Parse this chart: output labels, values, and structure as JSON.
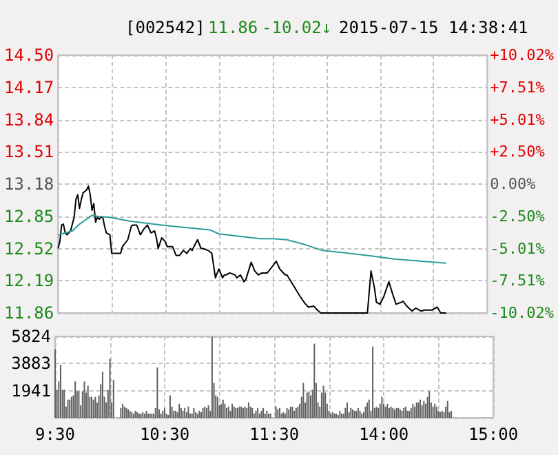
{
  "chart_data": [
    {
      "type": "line",
      "title": "[002542]",
      "annotations": [
        "11.86",
        "-10.02↓",
        "2015-07-15 14:38:41"
      ],
      "categories": [
        null,
        null,
        null,
        null,
        null,
        null,
        null,
        null,
        null,
        null,
        null,
        null,
        null,
        null,
        null,
        null,
        null,
        null,
        null,
        null,
        null,
        null,
        null,
        null,
        null,
        null,
        null,
        null,
        null,
        null,
        null,
        null,
        null,
        null,
        null,
        null,
        null,
        null,
        null,
        null,
        null,
        null,
        null,
        null,
        null,
        null,
        null,
        null,
        null,
        null,
        null,
        null,
        null,
        null,
        null,
        null,
        null,
        null,
        null,
        null,
        null,
        null,
        null,
        null,
        null,
        null,
        null,
        null,
        null,
        null,
        null,
        null,
        null,
        null,
        null,
        null,
        null,
        null,
        null,
        null,
        null,
        null,
        null,
        null,
        null,
        null,
        null,
        null,
        null,
        null,
        null,
        null,
        null,
        null,
        null,
        null,
        null,
        null,
        null,
        null,
        null,
        null,
        null,
        null,
        null,
        null,
        null,
        null,
        null,
        null,
        null,
        null,
        null,
        null,
        null,
        null,
        null,
        null,
        null,
        null,
        null,
        null,
        null,
        null,
        null,
        null,
        null,
        null,
        null,
        null,
        null,
        null,
        null,
        null,
        null,
        null,
        null,
        null,
        null,
        null,
        null,
        null,
        null,
        null,
        null,
        null,
        null,
        null,
        null,
        null,
        null,
        null,
        null,
        null,
        null,
        null,
        null,
        null,
        null,
        null,
        null,
        null,
        null,
        null,
        null,
        null,
        null,
        null,
        null,
        null,
        null,
        null,
        null,
        null,
        null,
        null,
        null,
        null,
        null,
        null,
        null,
        null,
        null,
        null,
        null,
        null,
        null,
        null,
        null,
        null,
        null,
        null,
        null,
        null,
        null,
        null,
        null,
        null,
        null,
        null,
        null,
        null,
        null,
        null,
        null,
        null,
        null,
        null,
        null,
        null,
        null,
        null,
        null,
        null,
        null,
        null,
        null,
        null,
        null,
        null,
        null,
        null,
        null,
        null,
        null,
        null,
        null,
        null,
        null,
        null,
        null,
        null,
        null,
        null,
        null,
        null,
        null,
        null,
        null,
        null,
        null
      ],
      "ylim": [
        11.86,
        14.5
      ],
      "yticks": [
        11.86,
        12.19,
        12.52,
        12.85,
        13.18,
        13.51,
        13.84,
        14.17,
        {
          "value": 14.5,
          "label": "14.50"
        }
      ],
      "y2lim": [
        -10.02,
        10.02
      ],
      "y2ticks": [
        {
          "value": -10.02,
          "label": "-10.02%"
        },
        {
          "value": -7.51,
          "label": "-7.51%"
        },
        {
          "value": -5.01,
          "label": "-5.01%"
        },
        {
          "value": -2.5,
          "label": "-2.50%"
        },
        {
          "value": 0,
          "label": "0.00%"
        },
        {
          "value": 2.5,
          "label": "+2.50%"
        },
        {
          "value": 5.01,
          "label": "+5.01%"
        },
        {
          "value": 7.51,
          "label": "+7.51%"
        },
        {
          "value": 10.02,
          "label": "+10.02%"
        }
      ],
      "grid": true,
      "series": [
        {
          "color": "#000000",
          "values": [
            12.52,
            12.59,
            12.76,
            12.77,
            12.68,
            12.66,
            12.68,
            12.7,
            null,
            12.84,
            13.02,
            13.07,
            12.93,
            13.02,
            13.09,
            null,
            13.12,
            13.16,
            13.07,
            12.91,
            12.98,
            12.79,
            12.84,
            12.82,
            12.84,
            12.84,
            12.75,
            12.68,
            null,
            12.66,
            12.47,
            null,
            12.47,
            null,
            null,
            12.47,
            12.54,
            null,
            null,
            12.61,
            null,
            12.75,
            12.76,
            null,
            12.76,
            null,
            12.66,
            null,
            12.72,
            null,
            12.76,
            null,
            12.68,
            null,
            12.7,
            12.63,
            12.52,
            null,
            12.63,
            null,
            12.59,
            12.54,
            null,
            null,
            12.54,
            null,
            12.45,
            null,
            12.45,
            null,
            12.5,
            null,
            12.47,
            null,
            12.52,
            12.5,
            12.54,
            null,
            12.61,
            null,
            12.52,
            12.52,
            null,
            null,
            12.5,
            null,
            12.47,
            null,
            12.22,
            12.27,
            12.31,
            null,
            12.22,
            12.25,
            12.25,
            null,
            12.27,
            null,
            null,
            12.25,
            12.22,
            null,
            12.25,
            null,
            12.18,
            12.2,
            null,
            null,
            12.38,
            null,
            12.29,
            null,
            12.25,
            null,
            12.27,
            null,
            null,
            12.27,
            null,
            null,
            12.34,
            null,
            12.39,
            null,
            12.31,
            null,
            null,
            12.25,
            12.25,
            null,
            null,
            null,
            12.13,
            null,
            null,
            12.04,
            null,
            null,
            11.96,
            null,
            11.92,
            null,
            null,
            11.93,
            null,
            11.89,
            null,
            11.86,
            null,
            null,
            null,
            null,
            null,
            null,
            null,
            null,
            null,
            null,
            null,
            null,
            null,
            null,
            null,
            null,
            null,
            null,
            null,
            null,
            null,
            null,
            null,
            null,
            null,
            11.86,
            null,
            12.29,
            null,
            12.11,
            11.97,
            null,
            11.95,
            null,
            12.02,
            null,
            null,
            12.18,
            null,
            12.06,
            null,
            11.95,
            null,
            null,
            11.97,
            11.98,
            null,
            11.93,
            null,
            null,
            11.88,
            null,
            11.91,
            null,
            null,
            11.88,
            null,
            11.89,
            null,
            null,
            null,
            11.89,
            null,
            null,
            11.92,
            11.89,
            11.86,
            null,
            null,
            11.86,
            null,
            null,
            null,
            null,
            null,
            null,
            null,
            null,
            null,
            null,
            null,
            null,
            null,
            null,
            null,
            null,
            null,
            null,
            null,
            null,
            null,
            null,
            null
          ]
        },
        {
          "color": "#2a9d9d",
          "values": [
            12.66,
            null,
            null,
            null,
            null,
            null,
            null,
            null,
            12.7,
            null,
            null,
            null,
            12.77,
            null,
            null,
            null,
            null,
            null,
            null,
            12.86,
            null,
            null,
            12.85,
            null,
            null,
            null,
            null,
            null,
            null,
            12.84,
            null,
            null,
            null,
            null,
            null,
            null,
            null,
            null,
            null,
            null,
            12.8,
            null,
            null,
            null,
            null,
            null,
            null,
            null,
            null,
            null,
            null,
            null,
            null,
            null,
            null,
            null,
            null,
            null,
            12.76,
            null,
            null,
            null,
            null,
            null,
            null,
            null,
            null,
            null,
            null,
            null,
            null,
            null,
            null,
            null,
            null,
            null,
            null,
            null,
            null,
            null,
            null,
            null,
            null,
            null,
            null,
            12.71,
            null,
            null,
            null,
            null,
            12.67,
            null,
            null,
            null,
            null,
            null,
            null,
            null,
            null,
            null,
            null,
            null,
            null,
            null,
            null,
            null,
            null,
            null,
            null,
            null,
            null,
            null,
            null,
            12.62,
            null,
            null,
            null,
            null,
            null,
            null,
            12.62,
            null,
            null,
            null,
            null,
            null,
            null,
            null,
            12.61,
            null,
            null,
            null,
            null,
            null,
            null,
            null,
            null,
            null,
            12.56,
            null,
            null,
            null,
            null,
            null,
            null,
            null,
            null,
            null,
            12.5,
            null,
            null,
            null,
            null,
            null,
            null,
            null,
            null,
            null,
            null,
            null,
            null,
            null,
            null,
            null,
            null,
            null,
            null,
            null,
            null,
            null,
            null,
            null,
            null,
            12.45,
            null,
            null,
            null,
            null,
            null,
            null,
            null,
            null,
            null,
            null,
            null,
            null,
            null,
            null,
            null,
            12.41,
            null,
            null,
            null,
            null,
            null,
            null,
            null,
            null,
            null,
            null,
            null,
            null,
            null,
            null,
            null,
            null,
            null,
            null,
            null,
            null,
            null,
            null,
            null,
            null,
            null,
            null,
            null,
            12.37,
            null,
            null,
            null,
            null,
            null,
            null,
            null,
            null,
            null,
            null,
            null,
            null,
            null,
            null,
            null,
            null,
            null,
            null,
            null,
            null,
            null,
            null,
            null
          ]
        }
      ]
    },
    {
      "type": "bar",
      "categories": [
        "9:30",
        null,
        null,
        null,
        null,
        null,
        null,
        null,
        null,
        null,
        null,
        null,
        null,
        null,
        null,
        null,
        null,
        null,
        null,
        null,
        null,
        null,
        null,
        null,
        null,
        null,
        null,
        null,
        null,
        null,
        null,
        null,
        null,
        null,
        null,
        null,
        null,
        null,
        null,
        null,
        null,
        null,
        null,
        null,
        null,
        null,
        null,
        null,
        null,
        null,
        null,
        null,
        null,
        null,
        null,
        null,
        null,
        null,
        null,
        null,
        "10:30",
        null,
        null,
        null,
        null,
        null,
        null,
        null,
        null,
        null,
        null,
        null,
        null,
        null,
        null,
        null,
        null,
        null,
        null,
        null,
        null,
        null,
        null,
        null,
        null,
        null,
        null,
        null,
        null,
        null,
        null,
        null,
        null,
        null,
        null,
        null,
        null,
        null,
        null,
        null,
        null,
        null,
        null,
        null,
        null,
        null,
        null,
        null,
        null,
        null,
        null,
        null,
        null,
        null,
        null,
        null,
        null,
        null,
        null,
        null,
        "11:30",
        null,
        null,
        null,
        null,
        null,
        null,
        null,
        null,
        null,
        null,
        null,
        null,
        null,
        null,
        null,
        null,
        null,
        null,
        null,
        null,
        null,
        null,
        null,
        null,
        null,
        null,
        null,
        null,
        null,
        null,
        null,
        null,
        null,
        null,
        null,
        null,
        null,
        null,
        null,
        null,
        null,
        null,
        null,
        null,
        null,
        null,
        null,
        null,
        null,
        null,
        null,
        null,
        null,
        null,
        null,
        null,
        null,
        null,
        null,
        "14:00",
        null,
        null,
        null,
        null,
        null,
        null,
        null,
        null,
        null,
        null,
        null,
        null,
        null,
        null,
        null,
        null,
        null,
        null,
        null,
        null,
        null,
        null,
        null,
        null,
        null,
        null,
        null,
        null,
        null,
        null,
        null,
        null,
        null,
        null,
        null,
        null,
        null,
        null,
        null,
        null,
        null,
        null,
        null,
        null,
        null,
        null,
        null,
        null,
        null,
        null,
        null,
        null,
        null,
        null,
        null,
        null,
        null,
        null,
        null,
        "15:00"
      ],
      "ylim": [
        0,
        5824
      ],
      "yticks": [
        {
          "value": 0,
          "label": null
        },
        1941,
        3883,
        5824
      ],
      "grid": true,
      "series": [
        {
          "color": "#606060",
          "values": [
            4900,
            2000,
            2600,
            3800,
            2000,
            2000,
            800,
            1300,
            1300,
            1500,
            1600,
            2600,
            1900,
            1900,
            900,
            1900,
            2600,
            1800,
            2300,
            1500,
            1500,
            1300,
            1500,
            1100,
            1600,
            2400,
            3300,
            1500,
            1100,
            2000,
            4200,
            1100,
            2700,
            null,
            null,
            null,
            700,
            1000,
            800,
            700,
            600,
            500,
            400,
            300,
            500,
            400,
            300,
            300,
            400,
            300,
            500,
            300,
            300,
            300,
            300,
            700,
            3600,
            600,
            300,
            500,
            700,
            300,
            200,
            1600,
            800,
            500,
            500,
            400,
            1000,
            700,
            500,
            700,
            400,
            800,
            300,
            300,
            700,
            400,
            300,
            500,
            400,
            700,
            800,
            700,
            900,
            500,
            5800,
            2500,
            1600,
            1500,
            900,
            1000,
            1300,
            1000,
            700,
            800,
            500,
            1000,
            800,
            700,
            700,
            800,
            800,
            700,
            800,
            700,
            1100,
            800,
            700,
            300,
            500,
            700,
            300,
            500,
            700,
            300,
            500,
            300,
            300,
            null,
            null,
            800,
            600,
            700,
            300,
            400,
            300,
            700,
            600,
            800,
            800,
            500,
            700,
            800,
            1000,
            1500,
            2500,
            1100,
            1800,
            1900,
            1600,
            2000,
            5300,
            2500,
            1100,
            800,
            1800,
            2300,
            1800,
            1000,
            500,
            300,
            400,
            300,
            300,
            200,
            500,
            300,
            300,
            700,
            1100,
            400,
            700,
            600,
            500,
            500,
            700,
            500,
            300,
            400,
            800,
            1100,
            1300,
            500,
            5100,
            700,
            800,
            700,
            1000,
            1500,
            1000,
            800,
            1000,
            700,
            800,
            700,
            600,
            700,
            700,
            600,
            500,
            700,
            800,
            500,
            500,
            700,
            1000,
            800,
            1100,
            1100,
            1300,
            900,
            1200,
            1000,
            1500,
            1900,
            1100,
            800,
            1000,
            800,
            500,
            400,
            500,
            400,
            800,
            1200,
            400,
            500,
            null,
            null,
            null,
            null,
            null,
            null,
            null,
            null,
            null,
            null,
            null,
            null,
            null,
            null,
            null,
            null,
            null,
            null,
            null,
            null,
            null,
            null,
            null
          ]
        }
      ]
    }
  ]
}
